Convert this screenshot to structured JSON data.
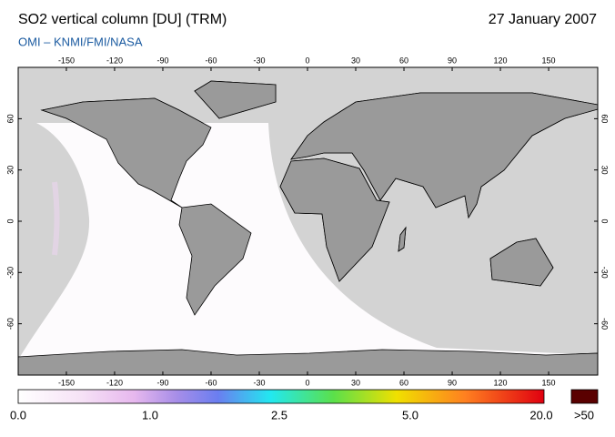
{
  "header": {
    "title": "SO2 vertical column [DU] (TRM)",
    "date": "27 January 2007",
    "source": "OMI  –  KNMI/FMI/NASA"
  },
  "map": {
    "lon_ticks": [
      -150,
      -120,
      -90,
      -60,
      -30,
      0,
      30,
      60,
      90,
      120,
      150
    ],
    "lat_ticks": [
      60,
      30,
      0,
      -30,
      -60
    ]
  },
  "colorbar": {
    "labels": [
      "0.0",
      "1.0",
      "2.5",
      "5.0",
      "20.0",
      ">50"
    ]
  }
}
